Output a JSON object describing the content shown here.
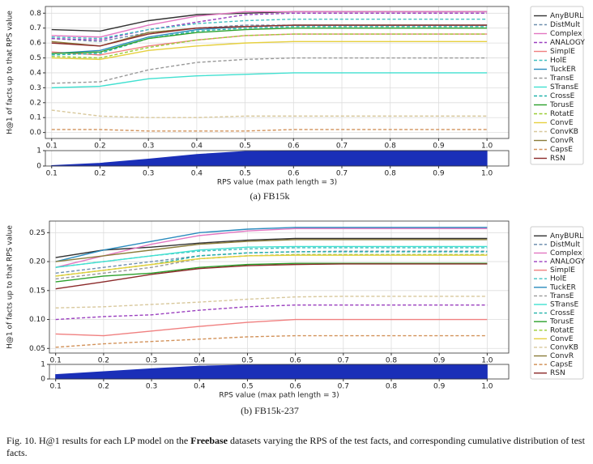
{
  "chart_data": [
    {
      "type": "line",
      "ylabel": "H@1 of facts up to that RPS value",
      "x": [
        0.1,
        0.2,
        0.3,
        0.4,
        0.5,
        0.6,
        0.7,
        0.8,
        0.9,
        1.0
      ],
      "xlim": [
        0.087,
        1.045
      ],
      "xticks": [
        0.1,
        0.2,
        0.3,
        0.4,
        0.5,
        0.6,
        0.7,
        0.8,
        0.9,
        {
          "value": 1,
          "label": "1.0"
        }
      ],
      "ylim": [
        -0.04,
        0.845
      ],
      "yticks": [
        {
          "value": 0,
          "label": "0.0"
        },
        0.1,
        0.2,
        0.3,
        0.4,
        0.5,
        0.6,
        0.7,
        0.8
      ],
      "grid": true,
      "series": [
        {
          "name": "AnyBURL",
          "color": "#333333",
          "style": "solid",
          "values": [
            0.69,
            0.68,
            0.75,
            0.79,
            0.8,
            0.81,
            0.81,
            0.81,
            0.81,
            0.81
          ]
        },
        {
          "name": "DistMult",
          "color": "#6f8fae",
          "style": "dashed",
          "values": [
            0.63,
            0.61,
            0.67,
            0.7,
            0.72,
            0.72,
            0.72,
            0.72,
            0.72,
            0.72
          ]
        },
        {
          "name": "Complex",
          "color": "#e377c2",
          "style": "solid",
          "values": [
            0.65,
            0.64,
            0.72,
            0.78,
            0.81,
            0.81,
            0.81,
            0.81,
            0.81,
            0.81
          ]
        },
        {
          "name": "ANALOGY",
          "color": "#9a3fbf",
          "style": "dashed",
          "values": [
            0.63,
            0.62,
            0.69,
            0.74,
            0.79,
            0.8,
            0.8,
            0.8,
            0.8,
            0.8
          ]
        },
        {
          "name": "SimplE",
          "color": "#f08080",
          "style": "solid",
          "values": [
            0.54,
            0.52,
            0.58,
            0.62,
            0.65,
            0.66,
            0.66,
            0.66,
            0.66,
            0.66
          ]
        },
        {
          "name": "HolE",
          "color": "#40c0c0",
          "style": "dashed",
          "values": [
            0.64,
            0.63,
            0.69,
            0.73,
            0.75,
            0.76,
            0.76,
            0.76,
            0.76,
            0.76
          ]
        },
        {
          "name": "TuckER",
          "color": "#2b8cbe",
          "style": "solid",
          "values": [
            0.53,
            0.55,
            0.64,
            0.69,
            0.71,
            0.72,
            0.72,
            0.72,
            0.72,
            0.72
          ]
        },
        {
          "name": "TransE",
          "color": "#999999",
          "style": "dashed",
          "values": [
            0.33,
            0.34,
            0.42,
            0.47,
            0.49,
            0.5,
            0.5,
            0.5,
            0.5,
            0.5
          ]
        },
        {
          "name": "STransE",
          "color": "#40e0d0",
          "style": "solid",
          "values": [
            0.3,
            0.31,
            0.36,
            0.38,
            0.39,
            0.4,
            0.4,
            0.4,
            0.4,
            0.4
          ]
        },
        {
          "name": "CrossE",
          "color": "#20b2aa",
          "style": "dashed",
          "values": [
            0.52,
            0.53,
            0.63,
            0.68,
            0.7,
            0.71,
            0.71,
            0.71,
            0.71,
            0.71
          ]
        },
        {
          "name": "TorusE",
          "color": "#2ca02c",
          "style": "solid",
          "values": [
            0.53,
            0.54,
            0.63,
            0.67,
            0.69,
            0.7,
            0.7,
            0.7,
            0.7,
            0.7
          ]
        },
        {
          "name": "RotatE",
          "color": "#9acd32",
          "style": "dashed",
          "values": [
            0.51,
            0.5,
            0.57,
            0.62,
            0.65,
            0.66,
            0.66,
            0.66,
            0.66,
            0.66
          ]
        },
        {
          "name": "ConvE",
          "color": "#e6d040",
          "style": "solid",
          "values": [
            0.5,
            0.49,
            0.55,
            0.58,
            0.6,
            0.61,
            0.61,
            0.61,
            0.61,
            0.61
          ]
        },
        {
          "name": "ConvKB",
          "color": "#d8c89c",
          "style": "dashed",
          "values": [
            0.15,
            0.11,
            0.1,
            0.1,
            0.11,
            0.11,
            0.11,
            0.11,
            0.11,
            0.11
          ]
        },
        {
          "name": "ConvR",
          "color": "#8b7d3a",
          "style": "solid",
          "values": [
            0.61,
            0.58,
            0.67,
            0.7,
            0.71,
            0.72,
            0.72,
            0.72,
            0.72,
            0.72
          ]
        },
        {
          "name": "CapsE",
          "color": "#d2925a",
          "style": "dashed",
          "values": [
            0.02,
            0.02,
            0.01,
            0.01,
            0.01,
            0.02,
            0.02,
            0.02,
            0.02,
            0.02
          ]
        },
        {
          "name": "RSN",
          "color": "#8b2a2a",
          "style": "solid",
          "values": [
            0.6,
            0.58,
            0.66,
            0.7,
            0.71,
            0.72,
            0.72,
            0.72,
            0.72,
            0.72
          ]
        }
      ]
    },
    {
      "type": "area",
      "xlabel": "RPS value (max path length = 3)",
      "x": [
        0.1,
        0.2,
        0.3,
        0.4,
        0.5,
        0.6,
        0.7,
        0.8,
        0.9,
        1.0
      ],
      "values": [
        0.03,
        0.18,
        0.45,
        0.75,
        0.95,
        0.99,
        1,
        1,
        1,
        1
      ],
      "color": "#1a2fb8",
      "xlim": [
        0.087,
        1.045
      ],
      "xticks": [
        0.1,
        0.2,
        0.3,
        0.4,
        0.5,
        0.6,
        0.7,
        0.8,
        0.9,
        {
          "value": 1,
          "label": "1.0"
        }
      ],
      "ylim": [
        0,
        1
      ],
      "yticks": [
        0,
        1
      ],
      "grid": true
    },
    {
      "type": "line",
      "ylabel": "H@1 of facts up to that RPS value",
      "x": [
        0.1,
        0.2,
        0.3,
        0.4,
        0.5,
        0.6,
        0.7,
        0.8,
        0.9,
        1.0
      ],
      "xlim": [
        0.087,
        1.045
      ],
      "xticks": [
        0.1,
        0.2,
        0.3,
        0.4,
        0.5,
        0.6,
        0.7,
        0.8,
        0.9,
        {
          "value": 1,
          "label": "1.0"
        }
      ],
      "ylim": [
        0.042,
        0.27
      ],
      "yticks": [
        0.05,
        {
          "value": 0.1,
          "label": "0.10"
        },
        0.15,
        {
          "value": 0.2,
          "label": "0.20"
        },
        0.25
      ],
      "grid": true,
      "series": [
        {
          "name": "AnyBURL",
          "color": "#333333",
          "style": "solid",
          "values": [
            0.207,
            0.22,
            0.225,
            0.232,
            0.237,
            0.24,
            0.24,
            0.24,
            0.24,
            0.24
          ]
        },
        {
          "name": "DistMult",
          "color": "#6f8fae",
          "style": "dashed",
          "values": [
            0.18,
            0.19,
            0.2,
            0.21,
            0.215,
            0.217,
            0.218,
            0.218,
            0.218,
            0.218
          ]
        },
        {
          "name": "Complex",
          "color": "#e377c2",
          "style": "solid",
          "values": [
            0.19,
            0.21,
            0.23,
            0.245,
            0.253,
            0.257,
            0.257,
            0.257,
            0.257,
            0.257
          ]
        },
        {
          "name": "ANALOGY",
          "color": "#9a3fbf",
          "style": "dashed",
          "values": [
            0.1,
            0.105,
            0.108,
            0.116,
            0.122,
            0.125,
            0.125,
            0.125,
            0.125,
            0.125
          ]
        },
        {
          "name": "SimplE",
          "color": "#f08080",
          "style": "solid",
          "values": [
            0.075,
            0.072,
            0.08,
            0.088,
            0.095,
            0.1,
            0.1,
            0.1,
            0.1,
            0.1
          ]
        },
        {
          "name": "HolE",
          "color": "#40c0c0",
          "style": "dashed",
          "values": [
            0.19,
            0.2,
            0.21,
            0.218,
            0.222,
            0.224,
            0.224,
            0.224,
            0.224,
            0.224
          ]
        },
        {
          "name": "TuckER",
          "color": "#2b8cbe",
          "style": "solid",
          "values": [
            0.2,
            0.22,
            0.235,
            0.25,
            0.256,
            0.259,
            0.259,
            0.259,
            0.259,
            0.259
          ]
        },
        {
          "name": "TransE",
          "color": "#999999",
          "style": "dashed",
          "values": [
            0.17,
            0.18,
            0.19,
            0.205,
            0.21,
            0.212,
            0.212,
            0.212,
            0.212,
            0.212
          ]
        },
        {
          "name": "STransE",
          "color": "#40e0d0",
          "style": "solid",
          "values": [
            0.19,
            0.2,
            0.21,
            0.22,
            0.225,
            0.226,
            0.226,
            0.226,
            0.226,
            0.226
          ]
        },
        {
          "name": "CrossE",
          "color": "#20b2aa",
          "style": "dashed",
          "values": [
            0.175,
            0.185,
            0.195,
            0.21,
            0.215,
            0.217,
            0.217,
            0.217,
            0.217,
            0.217
          ]
        },
        {
          "name": "TorusE",
          "color": "#2ca02c",
          "style": "solid",
          "values": [
            0.165,
            0.175,
            0.18,
            0.19,
            0.195,
            0.197,
            0.197,
            0.197,
            0.197,
            0.197
          ]
        },
        {
          "name": "RotatE",
          "color": "#9acd32",
          "style": "dashed",
          "values": [
            0.175,
            0.185,
            0.195,
            0.205,
            0.21,
            0.212,
            0.212,
            0.212,
            0.212,
            0.212
          ]
        },
        {
          "name": "ConvE",
          "color": "#e6d040",
          "style": "solid",
          "values": [
            0.175,
            0.185,
            0.195,
            0.205,
            0.21,
            0.211,
            0.211,
            0.211,
            0.211,
            0.211
          ]
        },
        {
          "name": "ConvKB",
          "color": "#d8c89c",
          "style": "dashed",
          "values": [
            0.12,
            0.122,
            0.126,
            0.13,
            0.135,
            0.139,
            0.14,
            0.14,
            0.14,
            0.14
          ]
        },
        {
          "name": "ConvR",
          "color": "#8b7d3a",
          "style": "solid",
          "values": [
            0.2,
            0.21,
            0.22,
            0.23,
            0.235,
            0.238,
            0.238,
            0.238,
            0.238,
            0.238
          ]
        },
        {
          "name": "CapsE",
          "color": "#d2925a",
          "style": "dashed",
          "values": [
            0.052,
            0.058,
            0.062,
            0.066,
            0.07,
            0.072,
            0.072,
            0.072,
            0.072,
            0.072
          ]
        },
        {
          "name": "RSN",
          "color": "#8b2a2a",
          "style": "solid",
          "values": [
            0.153,
            0.165,
            0.178,
            0.188,
            0.193,
            0.195,
            0.196,
            0.196,
            0.196,
            0.196
          ]
        }
      ]
    },
    {
      "type": "area",
      "xlabel": "RPS value (max path length = 3)",
      "x": [
        0.1,
        0.2,
        0.3,
        0.4,
        0.5,
        0.6,
        0.7,
        0.8,
        0.9,
        1.0
      ],
      "values": [
        0.3,
        0.5,
        0.7,
        0.88,
        0.96,
        0.99,
        1,
        1,
        1,
        1
      ],
      "color": "#1a2fb8",
      "xlim": [
        0.087,
        1.045
      ],
      "xticks": [
        0.1,
        0.2,
        0.3,
        0.4,
        0.5,
        0.6,
        0.7,
        0.8,
        0.9,
        {
          "value": 1,
          "label": "1.0"
        }
      ],
      "ylim": [
        0,
        1
      ],
      "yticks": [
        0,
        1
      ],
      "grid": true
    }
  ],
  "subcaptions": [
    "(a) FB15k",
    "(b) FB15k-237"
  ],
  "caption": {
    "prefix": "Fig. 10.  H@1 results for each LP model on the ",
    "bold": "Freebase",
    "suffix": " datasets varying the RPS of the test facts, and corresponding cumulative distribution of test facts."
  }
}
